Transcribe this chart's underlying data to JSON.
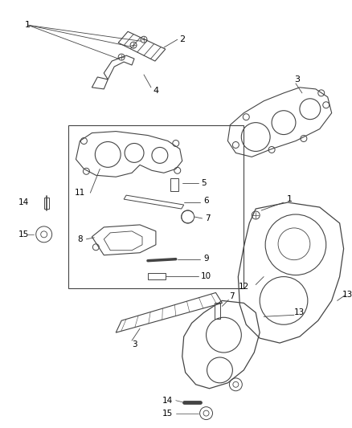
{
  "bg_color": "#ffffff",
  "line_color": "#444444",
  "text_color": "#000000",
  "fig_width": 4.39,
  "fig_height": 5.33,
  "dpi": 100
}
